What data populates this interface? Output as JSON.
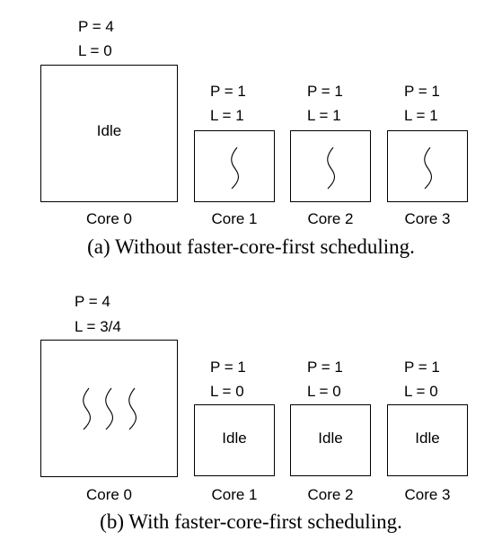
{
  "panels": [
    {
      "caption": "(a) Without faster-core-first scheduling.",
      "cores": [
        {
          "label": "Core 0",
          "p": "P = 4",
          "l": "L = 0",
          "content": "Idle",
          "threads": 0
        },
        {
          "label": "Core 1",
          "p": "P = 1",
          "l": "L = 1",
          "content": "",
          "threads": 1
        },
        {
          "label": "Core 2",
          "p": "P = 1",
          "l": "L = 1",
          "content": "",
          "threads": 1
        },
        {
          "label": "Core 3",
          "p": "P = 1",
          "l": "L = 1",
          "content": "",
          "threads": 1
        }
      ]
    },
    {
      "caption": "(b) With faster-core-first scheduling.",
      "cores": [
        {
          "label": "Core 0",
          "p": "P = 4",
          "l": "L = 3/4",
          "content": "",
          "threads": 3
        },
        {
          "label": "Core 1",
          "p": "P = 1",
          "l": "L = 0",
          "content": "Idle",
          "threads": 0
        },
        {
          "label": "Core 2",
          "p": "P = 1",
          "l": "L = 0",
          "content": "Idle",
          "threads": 0
        },
        {
          "label": "Core 3",
          "p": "P = 1",
          "l": "L = 0",
          "content": "Idle",
          "threads": 0
        }
      ]
    }
  ]
}
